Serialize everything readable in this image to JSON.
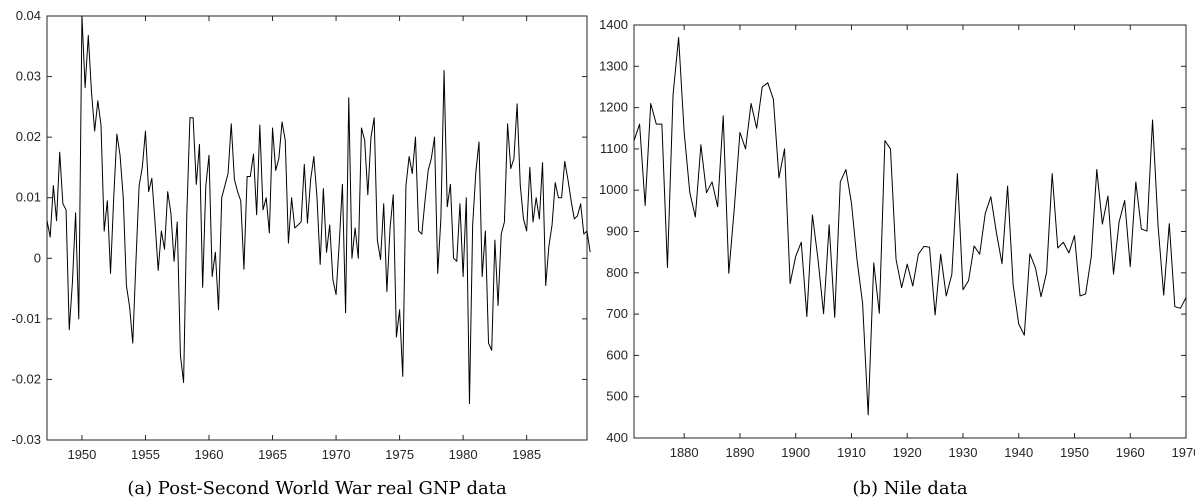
{
  "chart_data": [
    {
      "type": "line",
      "caption": "(a) Post-Second World War real GNP data",
      "xlim": [
        1947.25,
        1989.75
      ],
      "ylim": [
        -0.03,
        0.04
      ],
      "xticks": [
        "1950",
        "1955",
        "1960",
        "1965",
        "1970",
        "1975",
        "1980",
        "1985"
      ],
      "yticks": [
        "0.04",
        "0.03",
        "0.02",
        "0.01",
        "0",
        "-0.01",
        "-0.02",
        "-0.03"
      ],
      "x_start": 1947.25,
      "x_step": 0.25,
      "values": [
        0.0062,
        0.0035,
        0.012,
        0.0062,
        0.0175,
        0.009,
        0.008,
        -0.0118,
        -0.004,
        0.0075,
        -0.01,
        0.04,
        0.0282,
        0.0368,
        0.0275,
        0.021,
        0.026,
        0.022,
        0.0045,
        0.0095,
        -0.0025,
        0.01,
        0.0205,
        0.017,
        0.01,
        -0.0045,
        -0.008,
        -0.014,
        -0.0005,
        0.012,
        0.015,
        0.021,
        0.011,
        0.0132,
        0.006,
        -0.002,
        0.0045,
        0.0015,
        0.011,
        0.0075,
        -0.0005,
        0.006,
        -0.016,
        -0.0205,
        0.007,
        0.0232,
        0.0232,
        0.0122,
        0.0188,
        -0.0048,
        0.012,
        0.017,
        -0.003,
        0.001,
        -0.0085,
        0.01,
        0.012,
        0.014,
        0.0222,
        0.013,
        0.011,
        0.0095,
        -0.0018,
        0.0135,
        0.0135,
        0.0172,
        0.0072,
        0.022,
        0.008,
        0.01,
        0.0042,
        0.0215,
        0.0145,
        0.0165,
        0.0225,
        0.0195,
        0.0025,
        0.01,
        0.005,
        0.0055,
        0.006,
        0.0155,
        0.0058,
        0.013,
        0.0168,
        0.01,
        -0.001,
        0.0115,
        0.001,
        0.0055,
        -0.0035,
        -0.006,
        0.0025,
        0.0122,
        -0.009,
        0.0265,
        0.0,
        0.005,
        0.0,
        0.0215,
        0.0195,
        0.0105,
        0.02,
        0.0232,
        0.003,
        -0.0002,
        0.009,
        -0.0055,
        0.005,
        0.0105,
        -0.013,
        -0.0085,
        -0.0195,
        0.012,
        0.0168,
        0.014,
        0.02,
        0.0045,
        0.004,
        0.0095,
        0.0145,
        0.0165,
        0.02,
        -0.0025,
        0.0065,
        0.031,
        0.0085,
        0.0122,
        0.0,
        -0.0005,
        0.009,
        -0.003,
        0.01,
        -0.024,
        0.0055,
        0.0142,
        0.0192,
        -0.003,
        0.0045,
        -0.014,
        -0.0152,
        0.003,
        -0.0078,
        0.004,
        0.006,
        0.0222,
        0.0148,
        0.0165,
        0.0255,
        0.012,
        0.0065,
        0.0045,
        0.015,
        0.006,
        0.01,
        0.0065,
        0.0158,
        -0.0045,
        0.002,
        0.0055,
        0.0125,
        0.01,
        0.01,
        0.016,
        0.013,
        0.0095,
        0.0065,
        0.007,
        0.009,
        0.004,
        0.0045,
        0.001
      ]
    },
    {
      "type": "line",
      "caption": "(b) Nile data",
      "xlim": [
        1871,
        1970
      ],
      "ylim": [
        400,
        1400
      ],
      "xticks": [
        "1880",
        "1890",
        "1900",
        "1910",
        "1920",
        "1930",
        "1940",
        "1950",
        "1960",
        "1970"
      ],
      "yticks": [
        "1400",
        "1300",
        "1200",
        "1100",
        "1000",
        "900",
        "800",
        "700",
        "600",
        "500",
        "400"
      ],
      "x_start": 1871,
      "x_step": 1,
      "values": [
        1120,
        1160,
        963,
        1210,
        1160,
        1160,
        813,
        1230,
        1370,
        1140,
        995,
        935,
        1110,
        994,
        1020,
        960,
        1180,
        799,
        958,
        1140,
        1100,
        1210,
        1150,
        1250,
        1260,
        1220,
        1030,
        1100,
        774,
        840,
        874,
        694,
        940,
        833,
        701,
        916,
        692,
        1020,
        1050,
        969,
        831,
        726,
        456,
        824,
        702,
        1120,
        1100,
        832,
        764,
        821,
        768,
        845,
        864,
        862,
        698,
        845,
        744,
        796,
        1040,
        759,
        781,
        865,
        845,
        944,
        984,
        897,
        822,
        1010,
        771,
        676,
        649,
        846,
        812,
        742,
        801,
        1040,
        860,
        874,
        848,
        890,
        744,
        749,
        838,
        1050,
        918,
        986,
        797,
        923,
        975,
        815,
        1020,
        906,
        901,
        1170,
        912,
        746,
        919,
        718,
        714,
        740
      ]
    }
  ]
}
